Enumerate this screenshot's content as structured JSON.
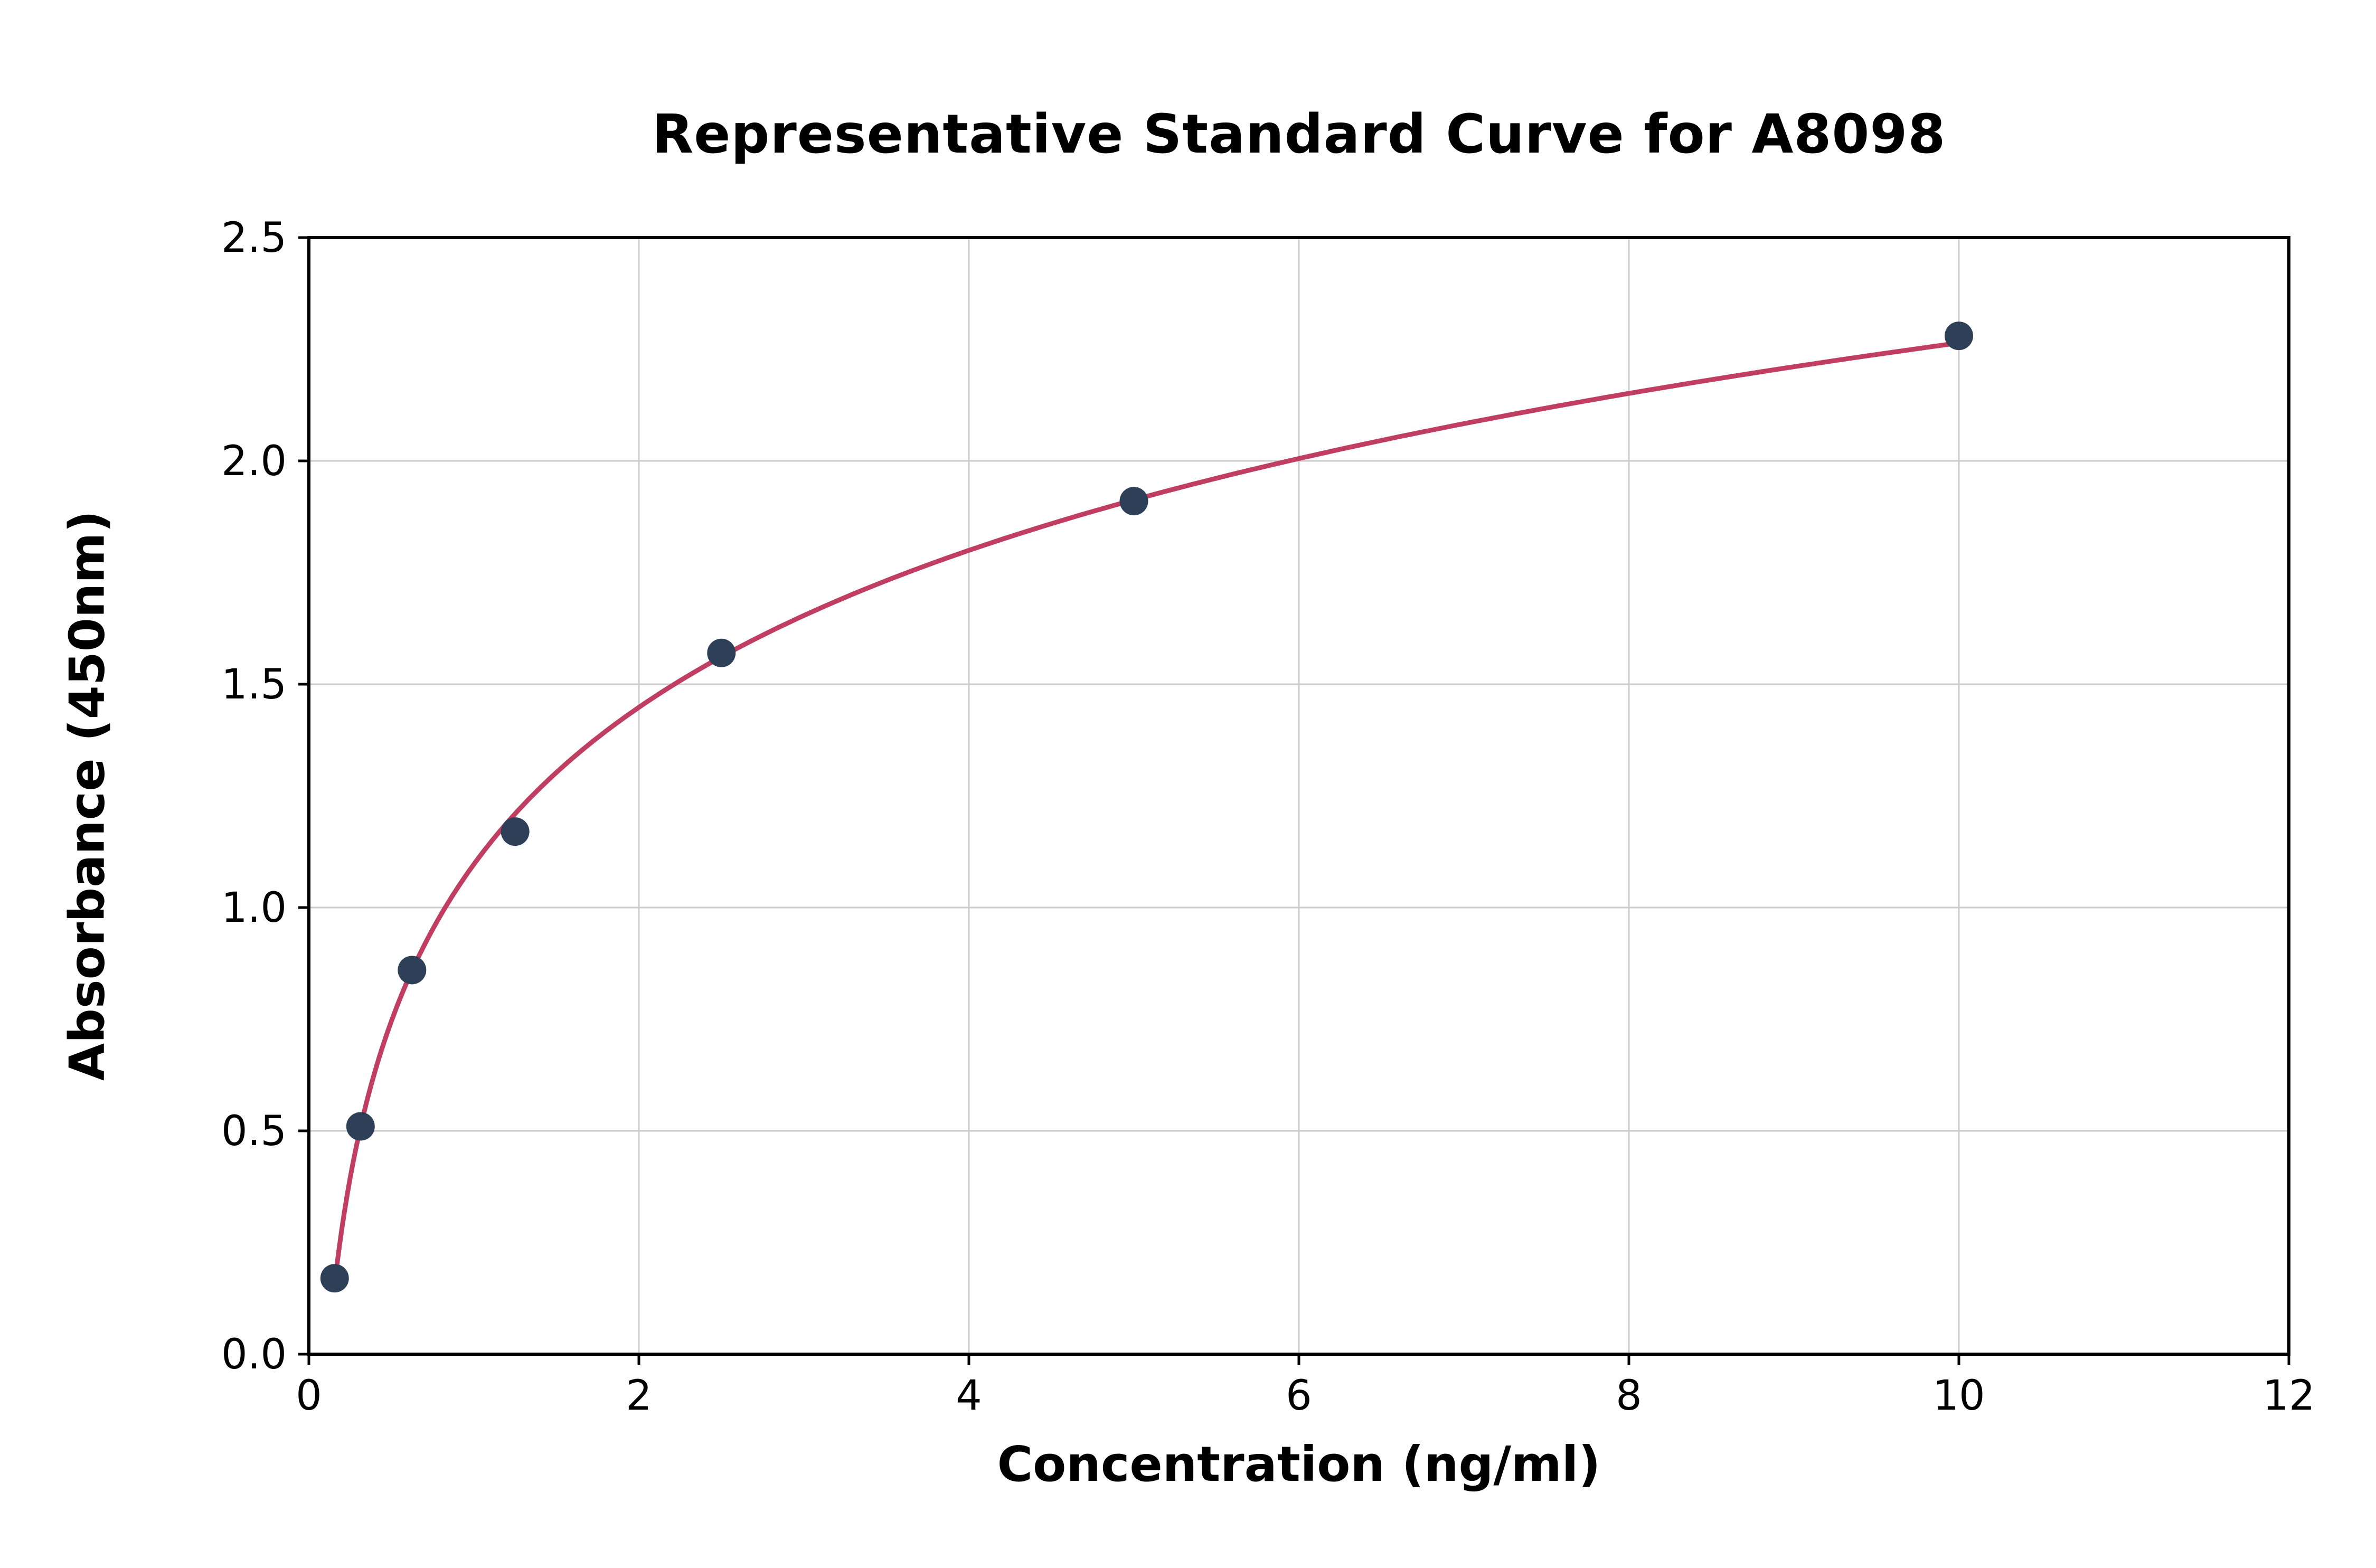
{
  "page": {
    "background": "#ffffff"
  },
  "chart_data": {
    "type": "line",
    "title": "Representative Standard Curve for A8098",
    "xlabel": "Concentration (ng/ml)",
    "ylabel": "Absorbance (450nm)",
    "x": [
      0.156,
      0.313,
      0.625,
      1.25,
      2.5,
      5,
      10
    ],
    "y": [
      0.17,
      0.51,
      0.86,
      1.17,
      1.57,
      1.91,
      2.28
    ],
    "xlim": [
      0,
      12
    ],
    "ylim": [
      0,
      2.5
    ],
    "xticks": [
      0,
      2,
      4,
      6,
      8,
      10,
      12
    ],
    "yticks": [
      0.0,
      0.5,
      1.0,
      1.5,
      2.0,
      2.5
    ],
    "grid": true,
    "legend": "none",
    "point_color": "#2E4057",
    "line_color": "#C13E63",
    "grid_color": "#CCCCCC",
    "frame_color": "#000000"
  }
}
